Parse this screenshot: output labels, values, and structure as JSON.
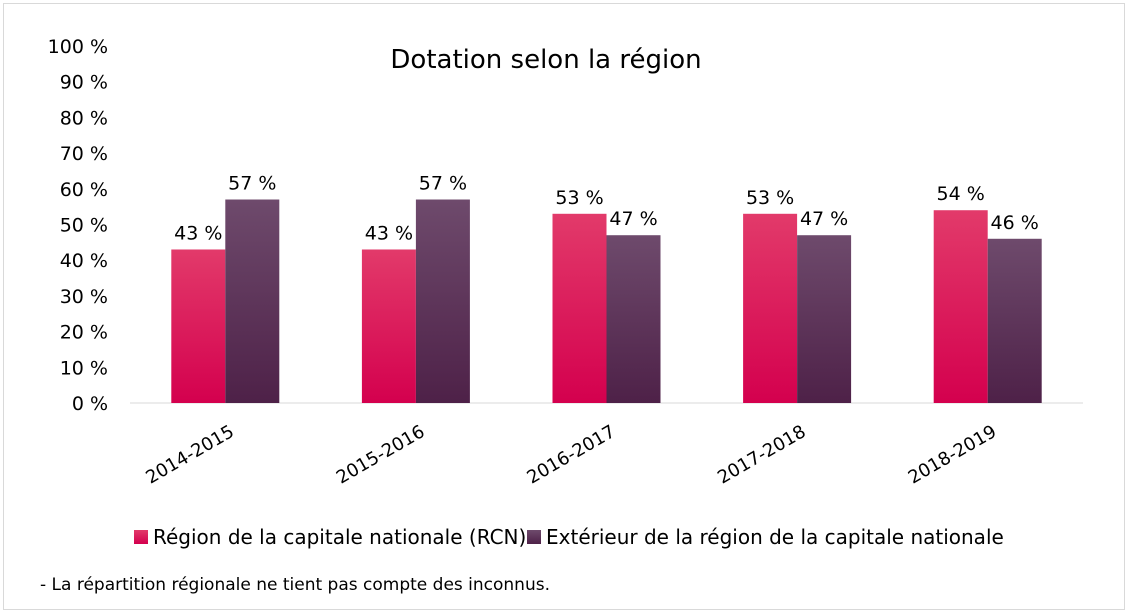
{
  "chart_data": {
    "type": "bar",
    "title": "Dotation selon la région",
    "categories": [
      "2014-2015",
      "2015-2016",
      "2016-2017",
      "2017-2018",
      "2018-2019"
    ],
    "series": [
      {
        "name": "Région de la capitale nationale (RCN)",
        "values": [
          43,
          43,
          53,
          53,
          54
        ],
        "labels": [
          "43 %",
          "43 %",
          "53 %",
          "53 %",
          "54 %"
        ],
        "color": "#e0115f"
      },
      {
        "name": "Extérieur de la région de la capitale nationale",
        "values": [
          57,
          57,
          47,
          47,
          46
        ],
        "labels": [
          "57 %",
          "57 %",
          "47 %",
          "47 %",
          "46 %"
        ],
        "color": "#5a2a57"
      }
    ],
    "ylim": [
      0,
      100
    ],
    "yticks": [
      "0 %",
      "10 %",
      "20 %",
      "30 %",
      "40 %",
      "50 %",
      "60 %",
      "70 %",
      "80 %",
      "90 %",
      "100 %"
    ],
    "grid": false,
    "legend_position": "bottom"
  },
  "footnote": "- La répartition régionale ne tient pas compte des inconnus."
}
